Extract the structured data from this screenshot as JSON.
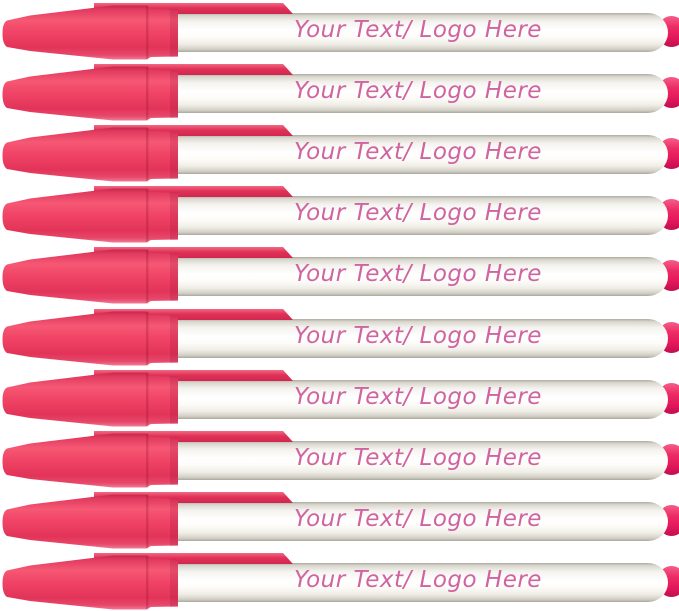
{
  "product_photo": {
    "subject": "stack of 10 identical white stick pens with pink caps",
    "pen_count": 10,
    "background_color": "#ffffff",
    "colors": {
      "cap_pink": "#ee3f63",
      "cap_shadow_pink": "#c9274d",
      "cap_highlight_pink": "#f8677e",
      "clip_pink": "#e23158",
      "end_plug_pink": "#e8245f",
      "imprint_text_pink": "#cf64a0",
      "barrel_white": "#fdfcf8",
      "barrel_shading": "#d2cfc5"
    }
  },
  "pens": [
    {
      "label": "Your Text/ Logo Here"
    },
    {
      "label": "Your Text/ Logo Here"
    },
    {
      "label": "Your Text/ Logo Here"
    },
    {
      "label": "Your Text/ Logo Here"
    },
    {
      "label": "Your Text/ Logo Here"
    },
    {
      "label": "Your Text/ Logo Here"
    },
    {
      "label": "Your Text/ Logo Here"
    },
    {
      "label": "Your Text/ Logo Here"
    },
    {
      "label": "Your Text/ Logo Here"
    },
    {
      "label": "Your Text/ Logo Here"
    }
  ]
}
